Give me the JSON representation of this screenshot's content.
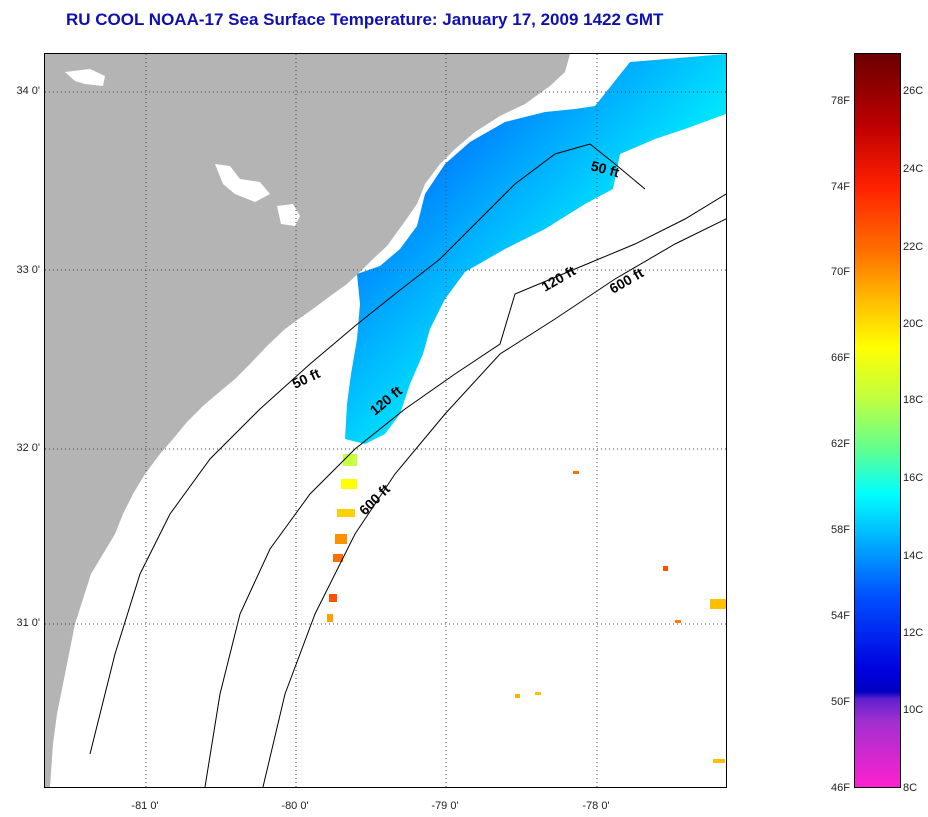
{
  "title": "RU COOL  NOAA-17  Sea Surface Temperature:  January 17, 2009 1422 GMT",
  "latitude_labels": [
    "34 0'",
    "33 0'",
    "32 0'",
    "31 0'"
  ],
  "longitude_labels": [
    "-81 0'",
    "-80 0'",
    "-79 0'",
    "-78 0'"
  ],
  "contour_labels": {
    "c50_north": "50 ft",
    "c50_south": "50 ft",
    "c120_north": "120 ft",
    "c120_south": "120 ft",
    "c600_north": "600 ft",
    "c600_south": "600 ft"
  },
  "colorbar": {
    "fahrenheit": [
      "78F",
      "74F",
      "70F",
      "66F",
      "62F",
      "58F",
      "54F",
      "50F",
      "46F"
    ],
    "celsius": [
      "26C",
      "24C",
      "22C",
      "20C",
      "18C",
      "16C",
      "14C",
      "12C",
      "10C",
      "8C"
    ]
  },
  "colors": {
    "title": "#1010b0",
    "land": "#b4b4b4",
    "ocean": "#ffffff"
  }
}
